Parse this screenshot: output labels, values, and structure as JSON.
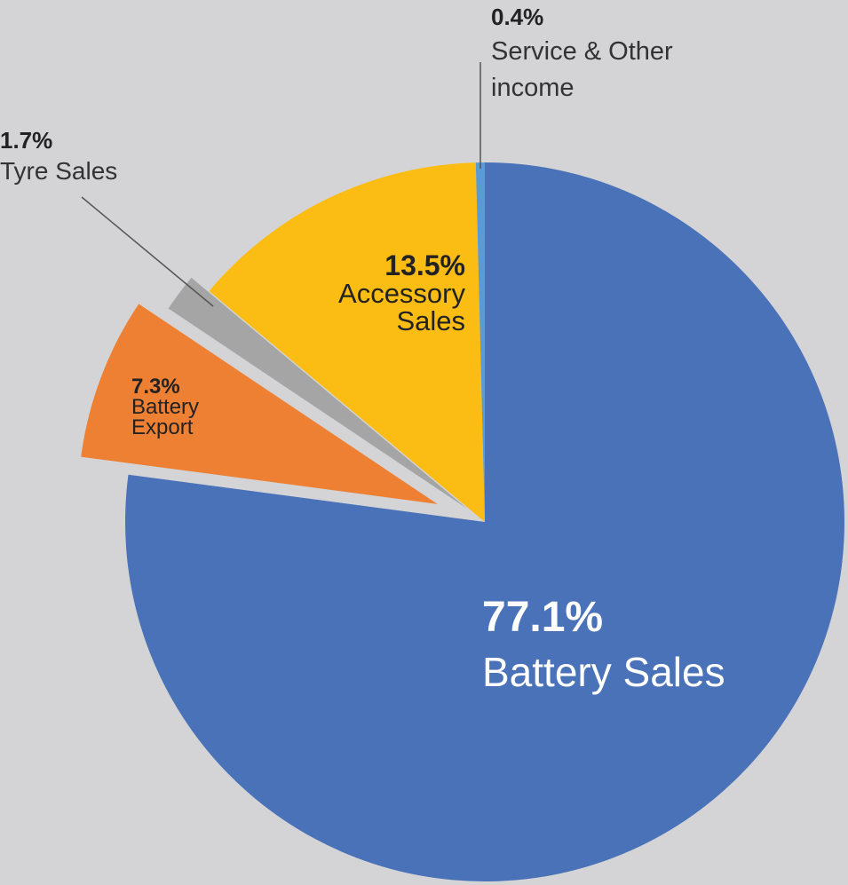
{
  "chart_data": {
    "type": "pie",
    "categories": [
      "Battery Sales",
      "Battery Export",
      "Tyre Sales",
      "Accessory Sales",
      "Service & Other income"
    ],
    "values": [
      77.1,
      7.3,
      1.7,
      13.5,
      0.4
    ],
    "value_labels": [
      "77.1%",
      "7.3%",
      "1.7%",
      "13.5%",
      "0.4%"
    ],
    "colors": [
      "#4a72b8",
      "#ee8033",
      "#a5a5a5",
      "#fbbd14",
      "#5b9bd5"
    ]
  }
}
